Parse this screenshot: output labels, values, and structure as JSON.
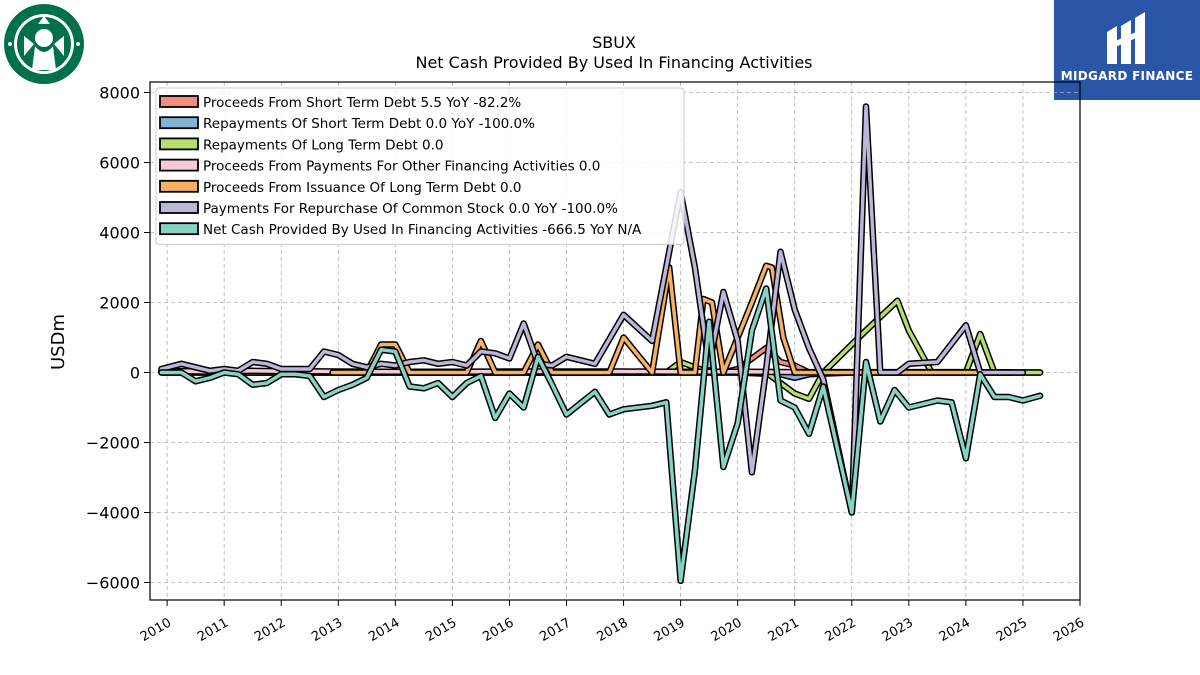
{
  "chart_data": {
    "type": "line",
    "title": "SBUX",
    "subtitle": "Net Cash Provided By Used In Financing Activities",
    "ylabel": "USDm",
    "xlabel": "",
    "xlim": [
      2009.7,
      2026
    ],
    "ylim": [
      -6500,
      8300
    ],
    "grid": true,
    "legend_position": "top-left",
    "yticks": [
      -6000,
      -4000,
      -2000,
      0,
      2000,
      4000,
      6000,
      8000
    ],
    "ytick_labels": [
      "−6000",
      "−4000",
      "−2000",
      "0",
      "2000",
      "4000",
      "6000",
      "8000"
    ],
    "xticks": [
      2010,
      2011,
      2012,
      2013,
      2014,
      2015,
      2016,
      2017,
      2018,
      2019,
      2020,
      2021,
      2022,
      2023,
      2024,
      2025,
      2026
    ],
    "xtick_labels": [
      "2010",
      "2011",
      "2012",
      "2013",
      "2014",
      "2015",
      "2016",
      "2017",
      "2018",
      "2019",
      "2020",
      "2021",
      "2022",
      "2023",
      "2024",
      "2025",
      "2026"
    ],
    "series": [
      {
        "name": "Proceeds From Short Term Debt",
        "legend": "Proceeds From Short Term Debt  5.5 YoY -82.2%",
        "color": "#f28e7f",
        "x": [
          2009.9,
          2010.3,
          2010.6,
          2011.0,
          2012.0,
          2013.0,
          2014.0,
          2015.0,
          2016.0,
          2017.0,
          2018.0,
          2019.0,
          2019.75,
          2020.0,
          2020.25,
          2020.5,
          2020.75,
          2021.0,
          2021.25,
          2022.0,
          2023.0,
          2024.0,
          2024.8
        ],
        "y": [
          20,
          20,
          10,
          0,
          0,
          0,
          0,
          0,
          0,
          0,
          0,
          0,
          0,
          100,
          400,
          700,
          300,
          200,
          0,
          0,
          0,
          0,
          5.5
        ]
      },
      {
        "name": "Repayments Of Short Term Debt",
        "legend": "Repayments Of Short Term Debt  0.0 YoY -100.0%",
        "color": "#86b3d4",
        "x": [
          2009.9,
          2011.0,
          2012.0,
          2013.0,
          2014.0,
          2015.0,
          2016.0,
          2017.0,
          2018.0,
          2019.0,
          2020.0,
          2020.75,
          2021.0,
          2021.25,
          2022.0,
          2023.0,
          2024.0,
          2024.8,
          2025.0,
          2025.3
        ],
        "y": [
          0,
          0,
          0,
          0,
          0,
          0,
          0,
          0,
          0,
          0,
          0,
          -50,
          -150,
          -50,
          0,
          0,
          0,
          0,
          0,
          0
        ]
      },
      {
        "name": "Repayments Of Long Term Debt",
        "legend": "Repayments Of Long Term Debt  0.0",
        "color": "#b5de6e",
        "x": [
          2009.9,
          2011.0,
          2012.0,
          2013.0,
          2014.0,
          2015.0,
          2016.0,
          2017.0,
          2018.0,
          2018.75,
          2019.0,
          2019.5,
          2020.0,
          2020.5,
          2020.75,
          2021.0,
          2021.25,
          2021.5,
          2022.0,
          2022.25,
          2022.8,
          2023.0,
          2023.4,
          2024.0,
          2024.25,
          2024.5,
          2025.0,
          2025.3
        ],
        "y": [
          0,
          0,
          0,
          0,
          0,
          0,
          0,
          0,
          0,
          0,
          300,
          0,
          0,
          0,
          -300,
          -600,
          -750,
          0,
          800,
          1200,
          2050,
          1200,
          0,
          0,
          1100,
          0,
          0,
          0
        ]
      },
      {
        "name": "Proceeds From Payments For Other Financing Activities",
        "legend": "Proceeds From Payments For Other Financing Activities  0.0",
        "color": "#f6c8d8",
        "x": [
          2009.9,
          2010.3,
          2010.7,
          2011.0,
          2011.5,
          2012.0,
          2013.0,
          2014.0,
          2015.0,
          2016.0,
          2017.0,
          2018.0,
          2019.0,
          2020.0,
          2021.0,
          2022.0,
          2023.0,
          2024.0,
          2024.8
        ],
        "y": [
          30,
          40,
          20,
          30,
          50,
          40,
          30,
          20,
          20,
          30,
          30,
          30,
          20,
          20,
          10,
          10,
          10,
          10,
          0
        ]
      },
      {
        "name": "Proceeds From Issuance Of Long Term Debt",
        "legend": "Proceeds From Issuance Of Long Term Debt  0.0",
        "color": "#f8b062",
        "x": [
          2012.9,
          2013.5,
          2013.75,
          2014.0,
          2014.25,
          2015.0,
          2015.25,
          2015.5,
          2015.75,
          2016.0,
          2016.25,
          2016.5,
          2016.75,
          2017.0,
          2017.5,
          2017.75,
          2018.0,
          2018.5,
          2018.8,
          2019.0,
          2019.25,
          2019.4,
          2019.55,
          2019.75,
          2020.0,
          2020.25,
          2020.5,
          2020.6,
          2020.8,
          2021.0,
          2021.25,
          2021.5,
          2022.0,
          2022.25,
          2022.5,
          2023.0,
          2023.5,
          2024.0,
          2024.25,
          2024.5
        ],
        "y": [
          0,
          0,
          800,
          800,
          0,
          0,
          0,
          900,
          0,
          0,
          0,
          800,
          0,
          0,
          0,
          0,
          1000,
          0,
          3000,
          0,
          0,
          2100,
          2000,
          0,
          1000,
          2000,
          3050,
          3000,
          1000,
          0,
          0,
          0,
          0,
          0,
          0,
          0,
          0,
          0,
          0,
          0
        ]
      },
      {
        "name": "Payments For Repurchase Of Common Stock",
        "legend": "Payments For Repurchase Of Common Stock  0.0 YoY -100.0%",
        "color": "#bdb6d8",
        "x": [
          2009.9,
          2010.25,
          2010.5,
          2010.75,
          2011.0,
          2011.25,
          2011.5,
          2011.75,
          2012.0,
          2012.25,
          2012.5,
          2012.75,
          2013.0,
          2013.25,
          2013.5,
          2013.75,
          2014.0,
          2014.25,
          2014.5,
          2014.75,
          2015.0,
          2015.25,
          2015.5,
          2015.75,
          2016.0,
          2016.25,
          2016.5,
          2016.75,
          2017.0,
          2017.5,
          2018.0,
          2018.5,
          2019.0,
          2019.25,
          2019.5,
          2019.75,
          2020.0,
          2020.25,
          2020.5,
          2020.75,
          2021.0,
          2021.25,
          2021.5,
          2022.0,
          2022.25,
          2022.5,
          2022.8,
          2023.0,
          2023.5,
          2024.0,
          2024.25,
          2024.5,
          2025.0
        ],
        "y": [
          100,
          250,
          150,
          50,
          100,
          50,
          300,
          250,
          100,
          100,
          100,
          600,
          500,
          250,
          150,
          250,
          200,
          300,
          350,
          250,
          300,
          200,
          600,
          550,
          400,
          1400,
          250,
          200,
          450,
          250,
          1650,
          900,
          5150,
          3000,
          200,
          2300,
          900,
          -2850,
          100,
          3450,
          1800,
          700,
          -200,
          -4000,
          7600,
          0,
          0,
          250,
          300,
          1350,
          0,
          0,
          0
        ]
      },
      {
        "name": "Net Cash Provided By Used In Financing Activities",
        "legend": "Net Cash Provided By Used In Financing Activities  -666.5 YoY N/A",
        "color": "#86d3c3",
        "x": [
          2009.9,
          2010.25,
          2010.5,
          2010.75,
          2011.0,
          2011.25,
          2011.5,
          2011.75,
          2012.0,
          2012.25,
          2012.5,
          2012.75,
          2013.0,
          2013.25,
          2013.5,
          2013.75,
          2014.0,
          2014.25,
          2014.5,
          2014.75,
          2015.0,
          2015.25,
          2015.5,
          2015.75,
          2016.0,
          2016.25,
          2016.5,
          2016.75,
          2017.0,
          2017.5,
          2017.75,
          2018.0,
          2018.5,
          2018.75,
          2019.0,
          2019.25,
          2019.5,
          2019.75,
          2020.0,
          2020.25,
          2020.5,
          2020.75,
          2021.0,
          2021.25,
          2021.5,
          2022.0,
          2022.25,
          2022.5,
          2022.75,
          2023.0,
          2023.5,
          2023.75,
          2024.0,
          2024.25,
          2024.5,
          2024.75,
          2025.0,
          2025.3
        ],
        "y": [
          0,
          0,
          -250,
          -150,
          0,
          -50,
          -350,
          -300,
          -50,
          -50,
          -100,
          -700,
          -500,
          -350,
          -150,
          650,
          600,
          -400,
          -450,
          -300,
          -700,
          -300,
          -100,
          -1300,
          -600,
          -1000,
          450,
          -350,
          -1200,
          -550,
          -1200,
          -1050,
          -950,
          -850,
          -5950,
          -2800,
          1450,
          -2700,
          -1450,
          1200,
          2400,
          -800,
          -1000,
          -1750,
          -400,
          -4000,
          300,
          -1400,
          -500,
          -1000,
          -800,
          -850,
          -2450,
          -50,
          -700,
          -700,
          -800,
          -666.5
        ]
      }
    ]
  },
  "logos": {
    "left": {
      "name": "Starbucks",
      "color": "#00704a"
    },
    "right": {
      "name": "MIDGARD FINANCE",
      "color": "#2a56a8"
    }
  },
  "branding": {
    "right_text": "MIDGARD FINANCE"
  }
}
